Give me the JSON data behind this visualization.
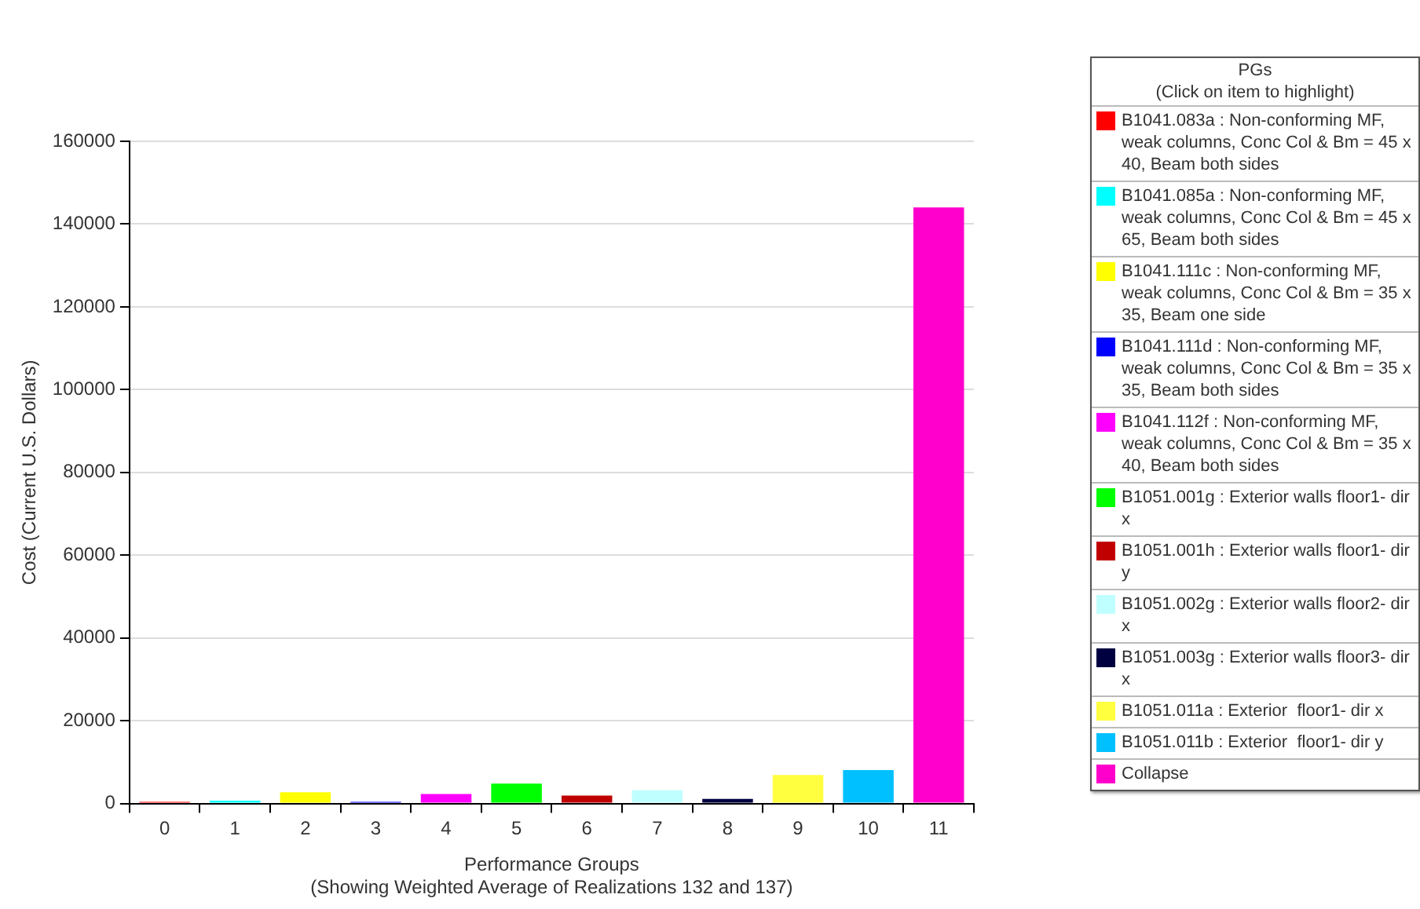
{
  "chart_data": {
    "type": "bar",
    "xlabel": "Performance Groups\n(Showing Weighted Average of Realizations 132 and 137)",
    "ylabel": "Cost (Current U.S. Dollars)",
    "legend_title": "PGs\n(Click on item to highlight)",
    "legend": "right",
    "grid": "y",
    "categories": [
      "0",
      "1",
      "2",
      "3",
      "4",
      "5",
      "6",
      "7",
      "8",
      "9",
      "10",
      "11"
    ],
    "ylim": [
      0,
      160000
    ],
    "yticks": [
      0,
      20000,
      40000,
      60000,
      80000,
      100000,
      120000,
      140000,
      160000
    ],
    "series": [
      {
        "name": "B1041.083a : Non-conforming MF, weak columns, Conc Col & Bm = 45 x 40, Beam both sides",
        "color": "#ff0000",
        "values": [
          400,
          null,
          null,
          null,
          null,
          null,
          null,
          null,
          null,
          null,
          null,
          null
        ]
      },
      {
        "name": "B1041.085a : Non-conforming MF, weak columns, Conc Col & Bm = 45 x 65, Beam both sides",
        "color": "#00ffff",
        "values": [
          null,
          700,
          null,
          null,
          null,
          null,
          null,
          null,
          null,
          null,
          null,
          null
        ]
      },
      {
        "name": "B1041.111c : Non-conforming MF, weak columns, Conc Col & Bm = 35 x 35, Beam one side",
        "color": "#ffff00",
        "values": [
          null,
          null,
          2700,
          null,
          null,
          null,
          null,
          null,
          null,
          null,
          null,
          null
        ]
      },
      {
        "name": "B1041.111d : Non-conforming MF, weak columns, Conc Col & Bm = 35 x 35, Beam both sides",
        "color": "#0000ff",
        "values": [
          null,
          null,
          null,
          400,
          null,
          null,
          null,
          null,
          null,
          null,
          null,
          null
        ]
      },
      {
        "name": "B1041.112f : Non-conforming MF, weak columns, Conc Col & Bm = 35 x 40, Beam both sides",
        "color": "#ff00ff",
        "values": [
          null,
          null,
          null,
          null,
          2300,
          null,
          null,
          null,
          null,
          null,
          null,
          null
        ]
      },
      {
        "name": "B1051.001g : Exterior walls floor1- dir x",
        "color": "#00ff00",
        "values": [
          null,
          null,
          null,
          null,
          null,
          4800,
          null,
          null,
          null,
          null,
          null,
          null
        ]
      },
      {
        "name": "B1051.001h : Exterior walls floor1- dir y",
        "color": "#c00000",
        "values": [
          null,
          null,
          null,
          null,
          null,
          null,
          1900,
          null,
          null,
          null,
          null,
          null
        ]
      },
      {
        "name": "B1051.002g : Exterior walls floor2- dir x",
        "color": "#c0ffff",
        "values": [
          null,
          null,
          null,
          null,
          null,
          null,
          null,
          3200,
          null,
          null,
          null,
          null
        ]
      },
      {
        "name": "B1051.003g : Exterior walls floor3- dir x",
        "color": "#000040",
        "values": [
          null,
          null,
          null,
          null,
          null,
          null,
          null,
          null,
          1100,
          null,
          null,
          null
        ]
      },
      {
        "name": "B1051.011a : Exterior  floor1- dir x",
        "color": "#ffff40",
        "values": [
          null,
          null,
          null,
          null,
          null,
          null,
          null,
          null,
          null,
          6900,
          null,
          null
        ]
      },
      {
        "name": "B1051.011b : Exterior  floor1- dir y",
        "color": "#00c0ff",
        "values": [
          null,
          null,
          null,
          null,
          null,
          null,
          null,
          null,
          null,
          null,
          8100,
          null
        ]
      },
      {
        "name": "Collapse",
        "color": "#ff00cc",
        "values": [
          null,
          null,
          null,
          null,
          null,
          null,
          null,
          null,
          null,
          null,
          null,
          144000
        ]
      }
    ]
  }
}
